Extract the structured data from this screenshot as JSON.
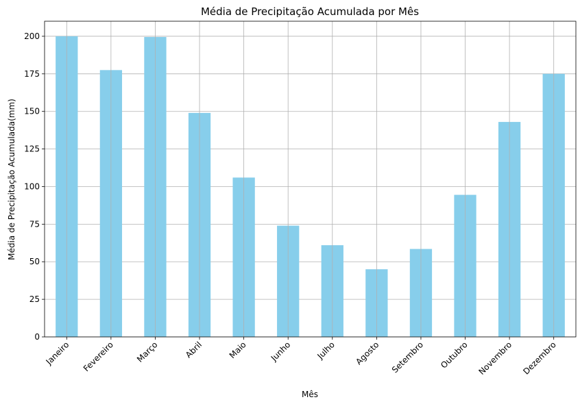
{
  "chart_data": {
    "type": "bar",
    "title": "Média de Precipitação Acumulada por Mês",
    "xlabel": "Mês",
    "ylabel": "Média de Precipitação Acumulada(mm)",
    "categories": [
      "Janeiro",
      "Fevereiro",
      "Março",
      "Abril",
      "Maio",
      "Junho",
      "Julho",
      "Agosto",
      "Setembro",
      "Outubro",
      "Novembro",
      "Dezembro"
    ],
    "values": [
      200,
      177.5,
      199.5,
      149,
      106,
      74,
      61,
      45,
      58.5,
      94.5,
      143,
      175
    ],
    "ylim": [
      0,
      210
    ],
    "yticks": [
      0,
      25,
      50,
      75,
      100,
      125,
      150,
      175,
      200
    ],
    "ytick_labels": [
      "0",
      "25",
      "50",
      "75",
      "100",
      "125",
      "150",
      "175",
      "200"
    ],
    "grid": true,
    "bar_color": "#87ceeb",
    "grid_color": "#b0b0b0",
    "xtick_rotation_deg": 45
  }
}
